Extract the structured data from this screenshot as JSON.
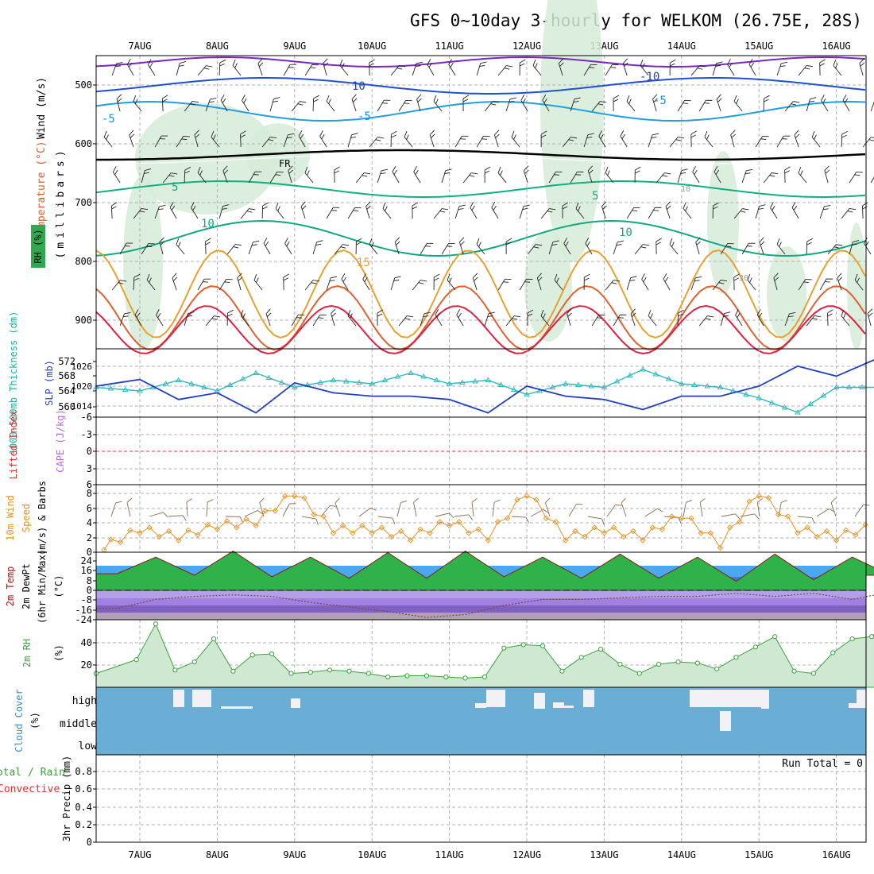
{
  "title": "GFS 0~10day 3-hourly for WELKOM (26.75E, 28S)",
  "dates": [
    "7AUG",
    "8AUG",
    "9AUG",
    "10AUG",
    "11AUG",
    "12AUG",
    "13AUG",
    "14AUG",
    "15AUG",
    "16AUG"
  ],
  "colors": {
    "temp_contour": "#1f77d0",
    "freezing": "#000000",
    "rh_fill": "#cfe8d2",
    "slp": "#2040c0",
    "thickness": "#30b8c0",
    "wind10": "#e89020",
    "lifted": "#e03030",
    "cape": "#c060e0",
    "rh2m": "#3aa33a",
    "cloud": "#6aaed6",
    "precip_total": "#3aa33a",
    "precip_conv": "#e03030"
  },
  "panels": {
    "upper": {
      "ylabel_wind": "Wind (m/s)",
      "ylabel_temp": "Temperature (°C)",
      "ylabel_rh": "RH (%)",
      "ylabel_mb": "(millibars)",
      "y_ticks": [
        "500",
        "600",
        "700",
        "800",
        "900"
      ],
      "contour_labels": [
        "-10",
        "10",
        "-10",
        "-5",
        "-5",
        "-5",
        "-5",
        "FR",
        "5",
        "5",
        "10",
        "10",
        "15",
        "10",
        "30",
        "10"
      ]
    },
    "slp": {
      "ylabel_thk": "1000-500mb Thickness (dm)",
      "ylabel_slp": "SLP (mb)",
      "thk_ticks": [
        "572",
        "568",
        "564",
        "560"
      ],
      "slp_ticks": [
        "1026",
        "1020",
        "1014"
      ]
    },
    "li": {
      "ylabel_li": "Lifted Index",
      "ylabel_cape": "CAPE (J/kg)",
      "ticks": [
        "-6",
        "-3",
        "0",
        "3",
        "6"
      ]
    },
    "wind10": {
      "ylabel": "10m Wind Speed (m/s) & Barbs",
      "ylabel_a": "10m Wind",
      "ylabel_b": "Speed",
      "ylabel_c": "(m/s) & Barbs",
      "ticks": [
        "8",
        "6",
        "4",
        "2",
        "0"
      ]
    },
    "temp2m": {
      "ylabel_a": "2m Temp",
      "ylabel_b": "2m DewPt",
      "ylabel_c": "(6hr Min/Max)",
      "ylabel_unit": "(°C)",
      "ticks": [
        "24",
        "16",
        "8",
        "0",
        "-8",
        "-16",
        "-24"
      ]
    },
    "rh2m": {
      "ylabel": "2m RH",
      "unit": "(%)",
      "ticks": [
        "40",
        "20"
      ]
    },
    "cloud": {
      "ylabel": "Cloud Cover",
      "unit": "(%)",
      "levels": [
        "high",
        "middle",
        "low"
      ]
    },
    "precip": {
      "ylabel_a": "Total / Rain",
      "ylabel_b": "Convective",
      "ylabel_c": "3hr Precip (mm)",
      "ticks": [
        "0.8",
        "0.6",
        "0.4",
        "0.2",
        "0"
      ],
      "run_total": "Run Total = 0"
    }
  },
  "chart_data": [
    {
      "type": "line",
      "title": "SLP / 1000-500mb Thickness",
      "x_unit": "days from 7AUG 00Z",
      "series": [
        {
          "name": "SLP (mb)",
          "x": [
            0,
            0.5,
            1,
            1.5,
            2,
            2.5,
            3,
            3.5,
            4,
            4.5,
            5,
            5.5,
            6,
            6.5,
            7,
            7.5,
            8,
            8.5,
            9,
            9.5,
            10
          ],
          "values": [
            1020,
            1022,
            1016,
            1018,
            1012,
            1021,
            1018,
            1017,
            1017,
            1016,
            1012,
            1020,
            1017,
            1016,
            1013,
            1017,
            1017,
            1020,
            1026,
            1023,
            1028
          ]
        },
        {
          "name": "Thickness (dm)",
          "x": [
            0,
            0.5,
            1,
            1.5,
            2,
            2.5,
            3,
            3.5,
            4,
            4.5,
            5,
            5.5,
            6,
            6.5,
            7,
            7.5,
            8,
            8.5,
            9,
            9.5,
            10
          ],
          "values": [
            565,
            564,
            567,
            564,
            569,
            565,
            567,
            566,
            569,
            566,
            567,
            563,
            566,
            565,
            570,
            566,
            565,
            562,
            558,
            565,
            565
          ]
        }
      ]
    },
    {
      "type": "line",
      "title": "10m Wind Speed (m/s)",
      "x_unit": "days from 7AUG 00Z",
      "ylim": [
        0,
        9
      ],
      "series": [
        {
          "name": "10m Wind Speed",
          "x": [
            0,
            0.5,
            1,
            1.5,
            2,
            2.5,
            3,
            3.5,
            4,
            4.5,
            5,
            5.5,
            6,
            6.5,
            7,
            7.5,
            8,
            8.5,
            9,
            9.5,
            10
          ],
          "values": [
            0.5,
            3,
            2,
            3.5,
            4,
            8,
            3,
            3,
            2,
            4,
            2,
            8,
            2,
            3,
            2,
            5,
            1,
            8,
            3,
            2,
            3.5
          ]
        }
      ]
    },
    {
      "type": "area",
      "title": "2m Temp / 2m DewPt (°C)",
      "x_unit": "days from 7AUG 00Z",
      "ylim": [
        -30,
        28
      ],
      "series": [
        {
          "name": "2m Temp",
          "x": [
            0,
            0.5,
            1,
            1.5,
            2,
            2.5,
            3,
            3.5,
            4,
            4.5,
            5,
            5.5,
            6,
            6.5,
            7,
            7.5,
            8,
            8.5,
            9,
            9.5,
            10
          ],
          "values": [
            11,
            22,
            10,
            26,
            9,
            22,
            8,
            25,
            8,
            26,
            9,
            22,
            8,
            24,
            8,
            22,
            6,
            24,
            7,
            22,
            10
          ]
        },
        {
          "name": "2m DewPt",
          "x": [
            0,
            0.5,
            1,
            1.5,
            2,
            2.5,
            3,
            3.5,
            4,
            4.5,
            5,
            5.5,
            6,
            6.5,
            7,
            7.5,
            8,
            8.5,
            9,
            9.5,
            10
          ],
          "values": [
            -12,
            -6,
            -4,
            -3,
            -4,
            -8,
            -11,
            -14,
            -18,
            -16,
            -10,
            -6,
            -6,
            -5,
            -4,
            -4,
            -2,
            -4,
            -2,
            -6,
            -1
          ]
        }
      ]
    },
    {
      "type": "area",
      "title": "2m RH (%)",
      "x_unit": "days from 7AUG 00Z",
      "ylim": [
        0,
        60
      ],
      "series": [
        {
          "name": "2m RH",
          "x": [
            0,
            0.25,
            0.5,
            0.75,
            1,
            1.25,
            1.5,
            1.75,
            2,
            2.25,
            2.5,
            2.75,
            3,
            3.25,
            3.5,
            3.75,
            4,
            4.25,
            4.5,
            4.75,
            5,
            5.25,
            5.5,
            5.75,
            6,
            6.25,
            6.5,
            6.75,
            7,
            7.25,
            7.5,
            7.75,
            8,
            8.25,
            8.5,
            8.75,
            9,
            9.25,
            9.5,
            9.75,
            10
          ],
          "values": [
            12,
            24,
            55,
            15,
            22,
            42,
            14,
            28,
            29,
            12,
            13,
            15,
            14,
            12,
            9,
            10,
            10,
            9,
            8,
            9,
            34,
            37,
            36,
            14,
            26,
            33,
            20,
            12,
            20,
            22,
            21,
            16,
            26,
            35,
            44,
            14,
            12,
            30,
            42,
            44,
            58
          ]
        }
      ]
    },
    {
      "type": "line",
      "title": "3hr Precip (mm)",
      "ylim": [
        0,
        1
      ],
      "series": [
        {
          "name": "Total / Rain",
          "values": []
        },
        {
          "name": "Convective",
          "values": []
        }
      ]
    }
  ]
}
